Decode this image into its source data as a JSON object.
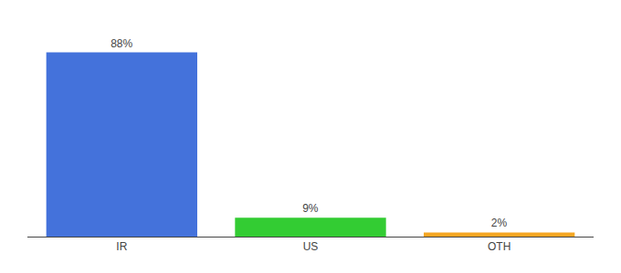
{
  "chart_data": {
    "type": "bar",
    "categories": [
      "IR",
      "US",
      "OTH"
    ],
    "values": [
      88,
      9,
      2
    ],
    "value_labels": [
      "88%",
      "9%",
      "2%"
    ],
    "colors": [
      "#4472db",
      "#33cc33",
      "#f5a623"
    ],
    "ylim": [
      0,
      100
    ],
    "grid": false,
    "data_labels": true,
    "tick_labels": "x"
  }
}
